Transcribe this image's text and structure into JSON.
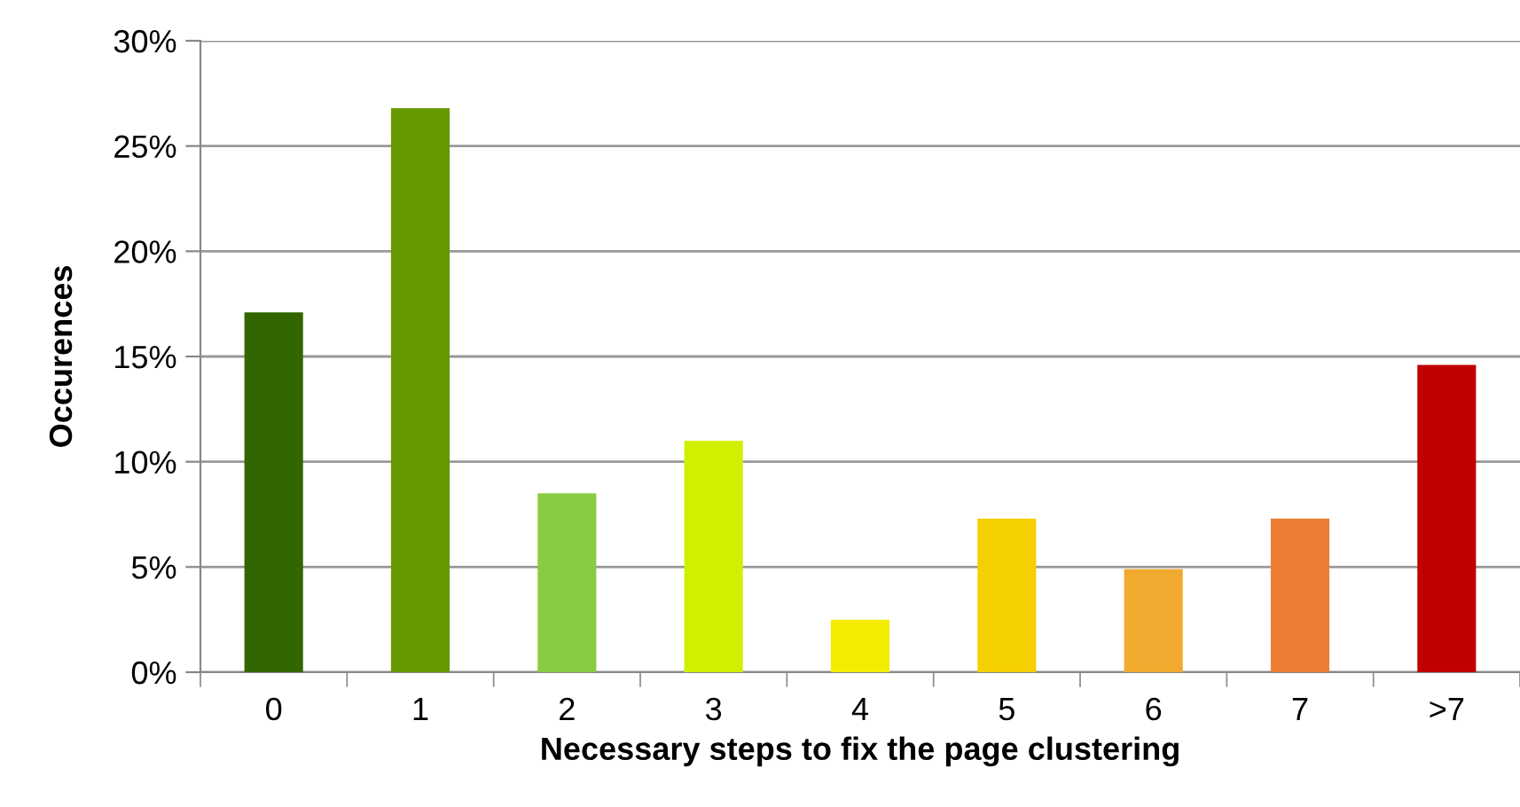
{
  "chart_data": {
    "type": "bar",
    "xlabel": "Necessary steps to fix the page clustering",
    "ylabel": "Occurences",
    "categories": [
      "0",
      "1",
      "2",
      "3",
      "4",
      "5",
      "6",
      "7",
      ">7"
    ],
    "values": [
      17.1,
      26.8,
      8.5,
      11.0,
      2.5,
      7.3,
      4.9,
      7.3,
      14.6
    ],
    "colors": [
      "#336600",
      "#669900",
      "#88cc44",
      "#d0f000",
      "#f4ec00",
      "#f4d000",
      "#f0aa30",
      "#ec7e34",
      "#c00000"
    ],
    "ylim": [
      0,
      30
    ],
    "yticks": [
      {
        "value": 0,
        "label": "0%"
      },
      {
        "value": 5,
        "label": "5%"
      },
      {
        "value": 10,
        "label": "10%"
      },
      {
        "value": 15,
        "label": "15%"
      },
      {
        "value": 20,
        "label": "20%"
      },
      {
        "value": 25,
        "label": "25%"
      },
      {
        "value": 30,
        "label": "30%"
      }
    ],
    "grid": "y"
  }
}
